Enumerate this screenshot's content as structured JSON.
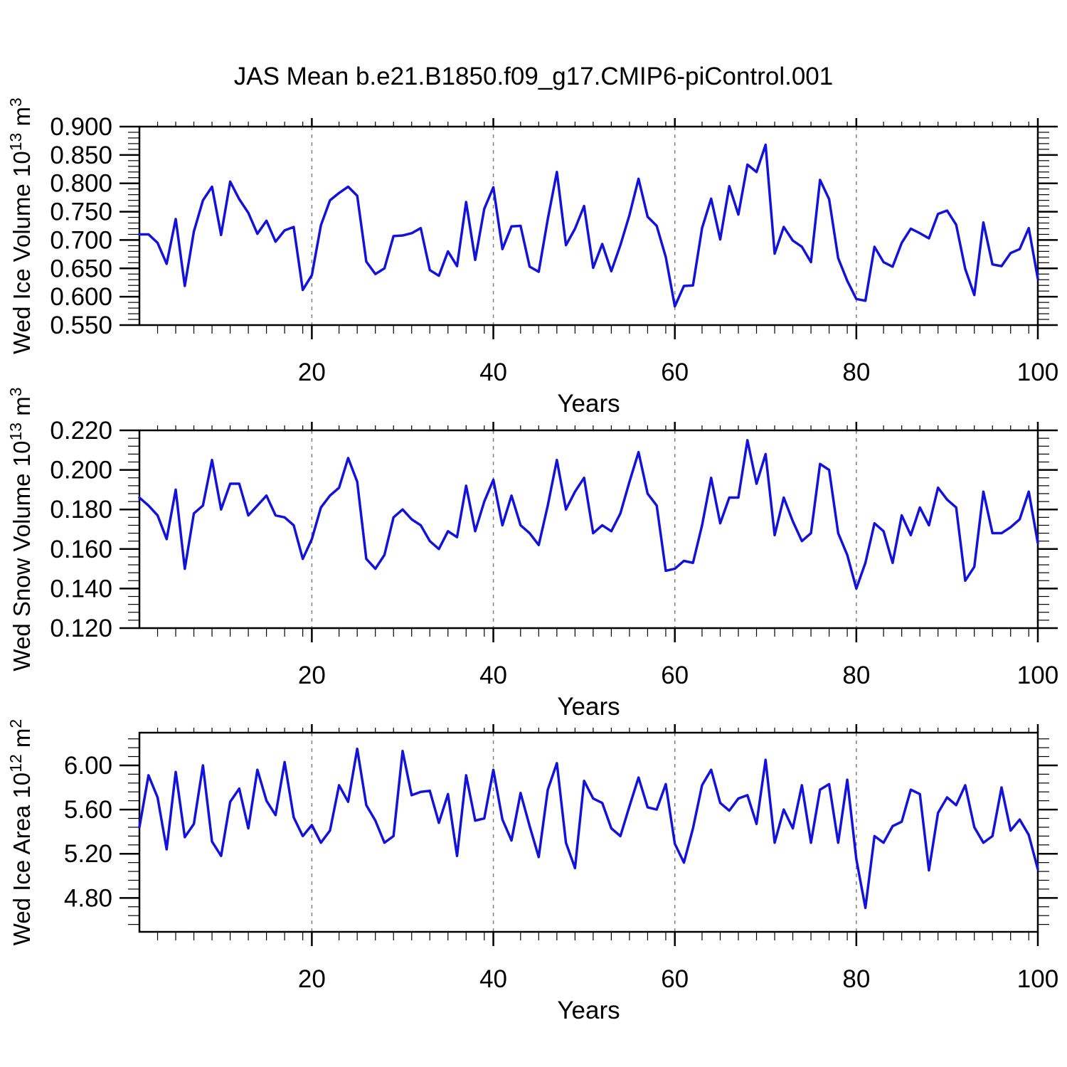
{
  "title": "JAS Mean b.e21.B1850.f09_g17.CMIP6-piControl.001",
  "line_color": "#1212dd",
  "axis_color": "#000000",
  "grid_color": "#808080",
  "chart_data": [
    {
      "type": "line",
      "id": "ice-volume",
      "ylabel": "Wed Ice Volume 10^13 m^3",
      "ylabel_segments": [
        [
          "Wed Ice Volume 10",
          0
        ],
        [
          "13",
          1
        ],
        [
          " m",
          0
        ],
        [
          "3",
          1
        ]
      ],
      "xlabel": "Years",
      "x_start": 1,
      "x_end": 100,
      "x_major_ticks": [
        20,
        40,
        60,
        80,
        100
      ],
      "x_tick_labels": [
        "20",
        "40",
        "60",
        "80",
        "100"
      ],
      "x_minor_step": 2,
      "gridlines_x": [
        20,
        40,
        60,
        80
      ],
      "ylim": [
        0.55,
        0.9
      ],
      "y_major_ticks": [
        0.55,
        0.6,
        0.65,
        0.7,
        0.75,
        0.8,
        0.85,
        0.9
      ],
      "y_tick_labels": [
        "0.550",
        "0.600",
        "0.650",
        "0.700",
        "0.750",
        "0.800",
        "0.850",
        "0.900"
      ],
      "y_minor": {
        "start": 0.55,
        "end": 0.9,
        "step": 0.01,
        "major_mod": 50,
        "scale": 1000
      },
      "values": [
        0.71,
        0.71,
        0.695,
        0.658,
        0.737,
        0.619,
        0.715,
        0.77,
        0.794,
        0.709,
        0.803,
        0.772,
        0.748,
        0.711,
        0.734,
        0.697,
        0.717,
        0.723,
        0.612,
        0.638,
        0.726,
        0.77,
        0.783,
        0.794,
        0.778,
        0.662,
        0.64,
        0.65,
        0.707,
        0.708,
        0.712,
        0.721,
        0.647,
        0.637,
        0.68,
        0.654,
        0.767,
        0.665,
        0.755,
        0.793,
        0.684,
        0.724,
        0.725,
        0.653,
        0.644,
        0.737,
        0.82,
        0.691,
        0.72,
        0.76,
        0.651,
        0.693,
        0.645,
        0.691,
        0.744,
        0.808,
        0.741,
        0.725,
        0.67,
        0.583,
        0.619,
        0.62,
        0.721,
        0.773,
        0.701,
        0.795,
        0.745,
        0.833,
        0.82,
        0.868,
        0.676,
        0.723,
        0.699,
        0.688,
        0.661,
        0.806,
        0.772,
        0.668,
        0.628,
        0.596,
        0.593,
        0.688,
        0.661,
        0.653,
        0.695,
        0.72,
        0.712,
        0.703,
        0.746,
        0.752,
        0.727,
        0.649,
        0.603,
        0.731,
        0.657,
        0.654,
        0.677,
        0.684,
        0.721,
        0.632
      ]
    },
    {
      "type": "line",
      "id": "snow-volume",
      "ylabel": "Wed Snow Volume 10^13 m^3",
      "ylabel_segments": [
        [
          "Wed Snow Volume 10",
          0
        ],
        [
          "13",
          1
        ],
        [
          " m",
          0
        ],
        [
          "3",
          1
        ]
      ],
      "xlabel": "Years",
      "x_start": 1,
      "x_end": 100,
      "x_major_ticks": [
        20,
        40,
        60,
        80,
        100
      ],
      "x_tick_labels": [
        "20",
        "40",
        "60",
        "80",
        "100"
      ],
      "x_minor_step": 2,
      "gridlines_x": [
        20,
        40,
        60,
        80
      ],
      "ylim": [
        0.12,
        0.22
      ],
      "y_major_ticks": [
        0.12,
        0.14,
        0.16,
        0.18,
        0.2,
        0.22
      ],
      "y_tick_labels": [
        "0.120",
        "0.140",
        "0.160",
        "0.180",
        "0.200",
        "0.220"
      ],
      "y_minor": {
        "start": 0.12,
        "end": 0.22,
        "step": 0.004,
        "major_mod": 20,
        "scale": 1000
      },
      "values": [
        0.186,
        0.182,
        0.177,
        0.165,
        0.19,
        0.15,
        0.178,
        0.182,
        0.205,
        0.18,
        0.193,
        0.193,
        0.177,
        0.182,
        0.187,
        0.177,
        0.176,
        0.172,
        0.155,
        0.165,
        0.181,
        0.187,
        0.191,
        0.206,
        0.194,
        0.155,
        0.15,
        0.157,
        0.176,
        0.18,
        0.175,
        0.172,
        0.164,
        0.16,
        0.169,
        0.166,
        0.192,
        0.169,
        0.184,
        0.195,
        0.172,
        0.187,
        0.172,
        0.168,
        0.162,
        0.182,
        0.205,
        0.18,
        0.189,
        0.196,
        0.168,
        0.172,
        0.169,
        0.178,
        0.194,
        0.209,
        0.188,
        0.182,
        0.149,
        0.15,
        0.154,
        0.153,
        0.172,
        0.196,
        0.173,
        0.186,
        0.186,
        0.215,
        0.193,
        0.208,
        0.167,
        0.186,
        0.174,
        0.164,
        0.168,
        0.203,
        0.2,
        0.168,
        0.157,
        0.14,
        0.153,
        0.173,
        0.169,
        0.153,
        0.177,
        0.167,
        0.181,
        0.172,
        0.191,
        0.185,
        0.181,
        0.144,
        0.151,
        0.189,
        0.168,
        0.168,
        0.171,
        0.175,
        0.189,
        0.163
      ]
    },
    {
      "type": "line",
      "id": "ice-area",
      "ylabel": "Wed Ice Area 10^12 m^2",
      "ylabel_segments": [
        [
          "Wed Ice Area 10",
          0
        ],
        [
          "12",
          1
        ],
        [
          " m",
          0
        ],
        [
          "2",
          1
        ]
      ],
      "xlabel": "Years",
      "x_start": 1,
      "x_end": 100,
      "x_major_ticks": [
        20,
        40,
        60,
        80,
        100
      ],
      "x_tick_labels": [
        "20",
        "40",
        "60",
        "80",
        "100"
      ],
      "x_minor_step": 2,
      "gridlines_x": [
        20,
        40,
        60,
        80
      ],
      "ylim": [
        4.493,
        6.296
      ],
      "y_major_ticks": [
        4.8,
        5.2,
        5.6,
        6.0
      ],
      "y_tick_labels": [
        "4.80",
        "5.20",
        "5.60",
        "6.00"
      ],
      "y_minor": {
        "start": 4.56,
        "end": 6.24,
        "step": 0.08,
        "major_mod": 40,
        "scale": 100
      },
      "values": [
        5.44,
        5.91,
        5.71,
        5.24,
        5.94,
        5.35,
        5.47,
        6.0,
        5.31,
        5.18,
        5.67,
        5.79,
        5.43,
        5.96,
        5.68,
        5.55,
        6.03,
        5.53,
        5.36,
        5.46,
        5.3,
        5.41,
        5.82,
        5.67,
        6.15,
        5.64,
        5.5,
        5.3,
        5.36,
        6.13,
        5.73,
        5.76,
        5.77,
        5.48,
        5.74,
        5.18,
        5.91,
        5.5,
        5.52,
        5.96,
        5.51,
        5.32,
        5.75,
        5.45,
        5.17,
        5.78,
        6.02,
        5.3,
        5.07,
        5.86,
        5.7,
        5.66,
        5.43,
        5.36,
        5.63,
        5.89,
        5.62,
        5.6,
        5.83,
        5.29,
        5.12,
        5.43,
        5.82,
        5.96,
        5.66,
        5.59,
        5.7,
        5.73,
        5.47,
        6.05,
        5.3,
        5.6,
        5.43,
        5.82,
        5.3,
        5.78,
        5.83,
        5.3,
        5.87,
        5.15,
        4.71,
        5.36,
        5.3,
        5.45,
        5.49,
        5.78,
        5.74,
        5.05,
        5.57,
        5.71,
        5.64,
        5.82,
        5.44,
        5.3,
        5.36,
        5.8,
        5.41,
        5.51,
        5.37,
        5.06
      ]
    }
  ]
}
